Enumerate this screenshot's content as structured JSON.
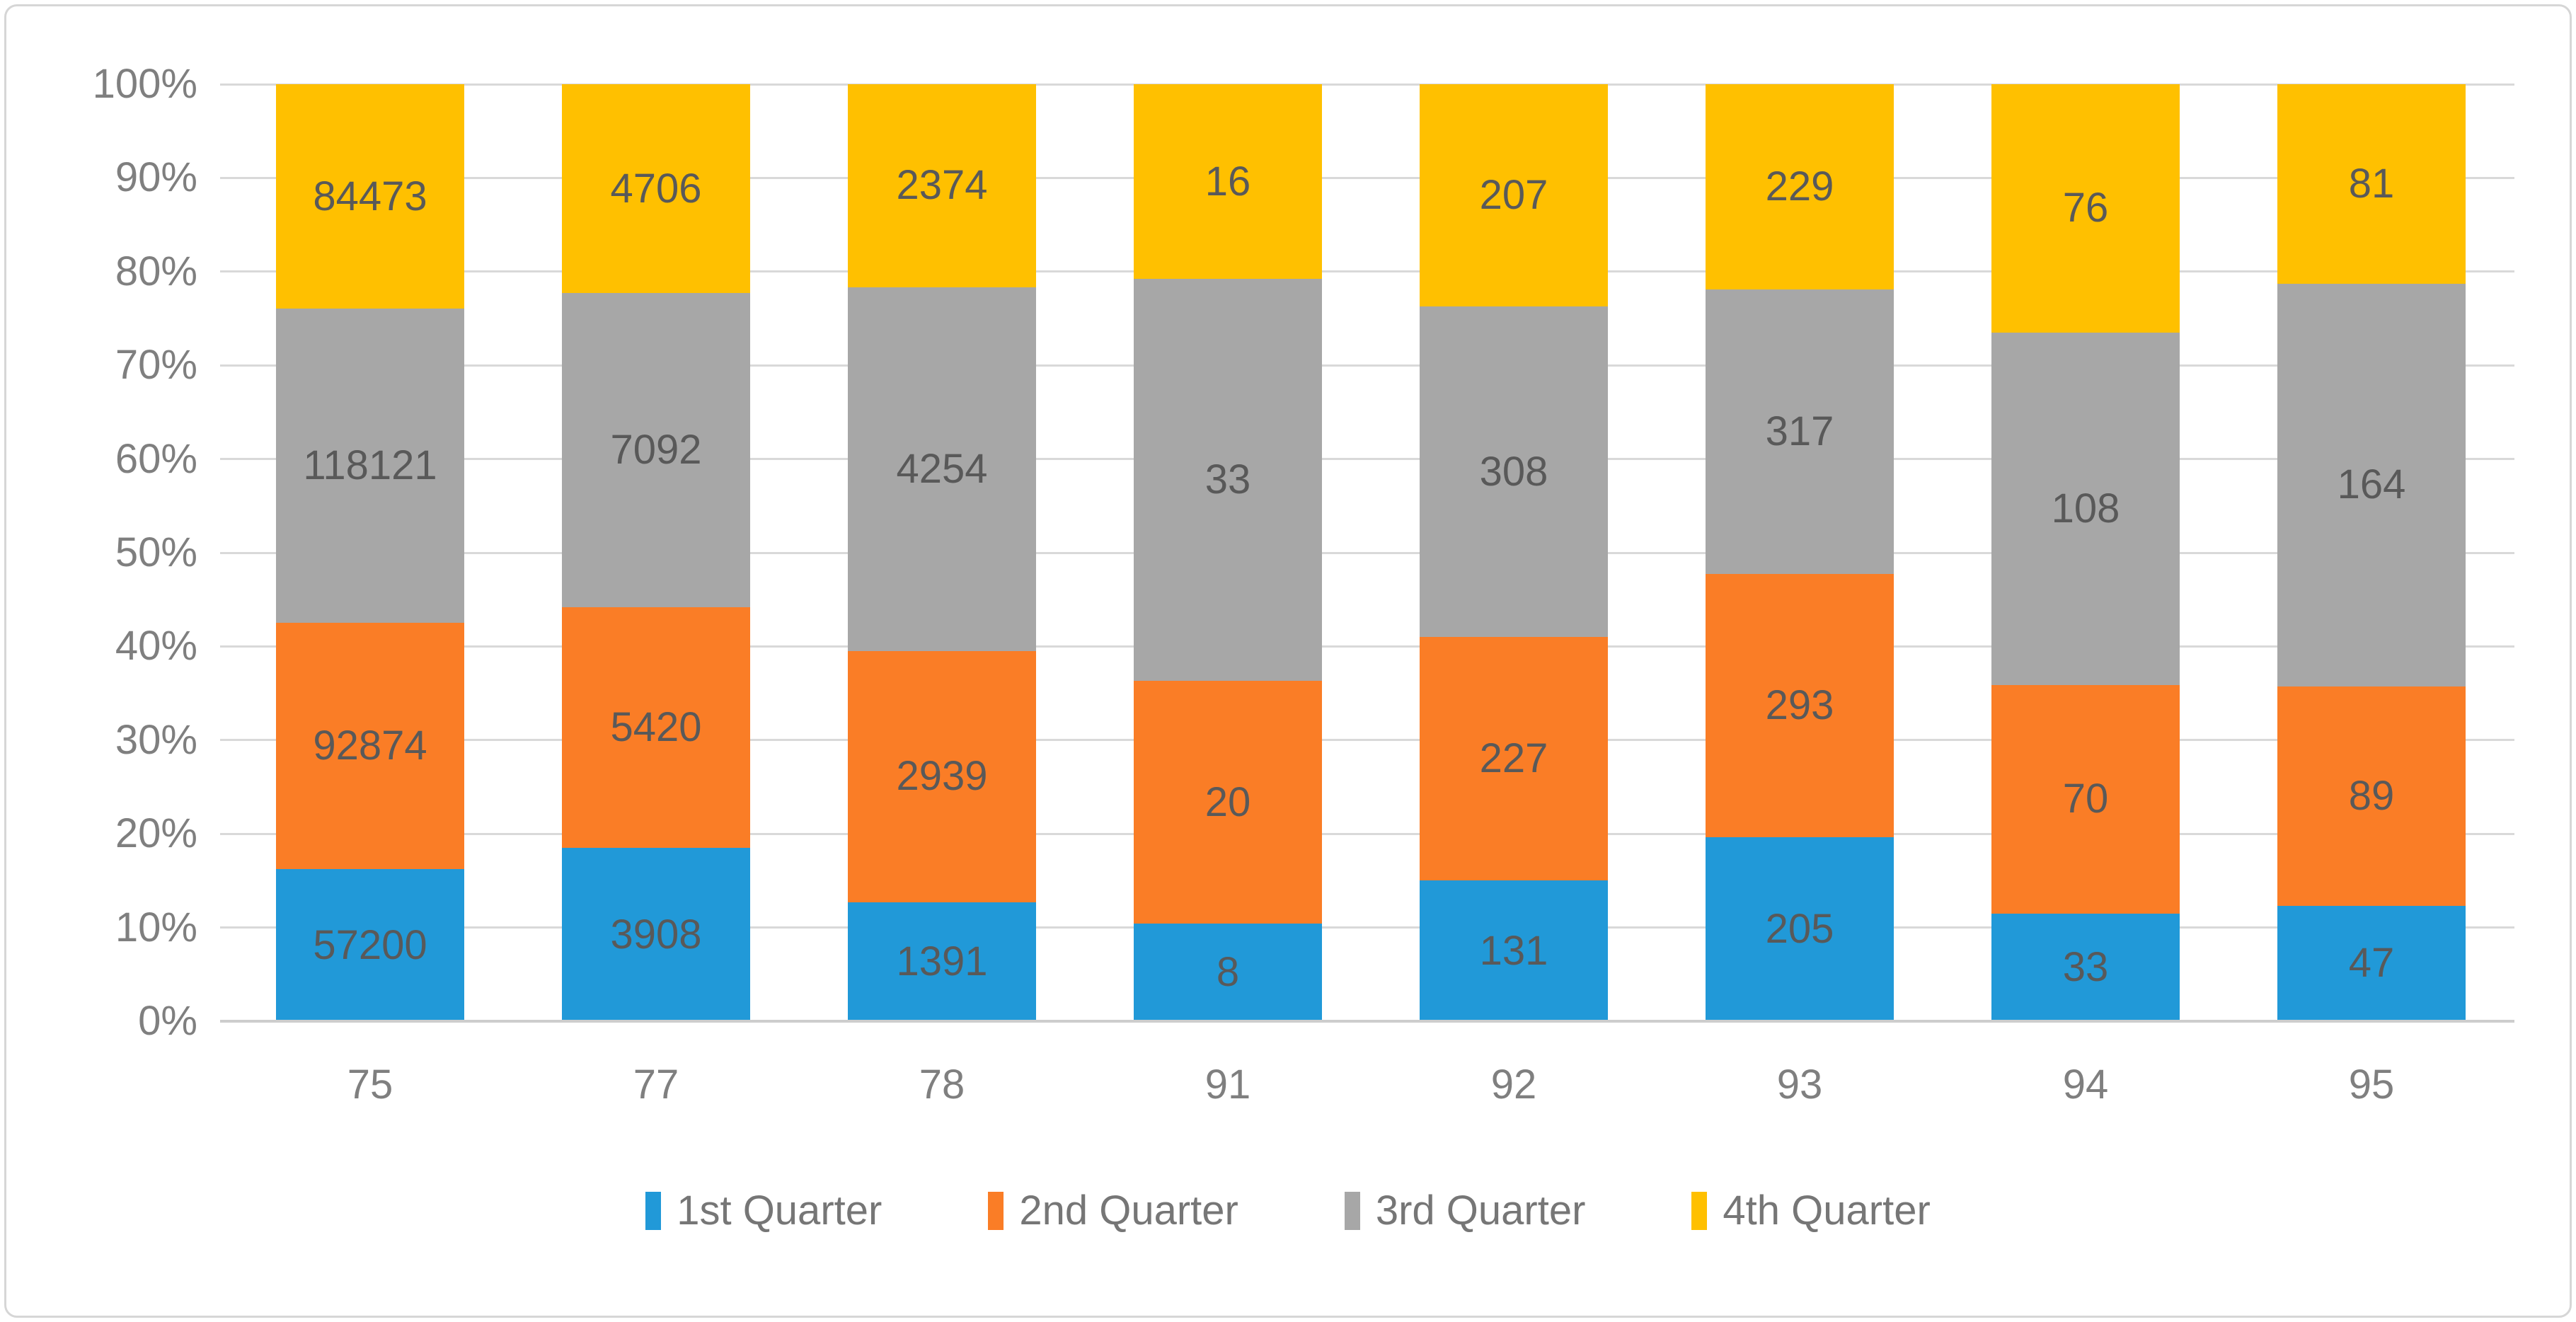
{
  "chart_data": {
    "type": "bar",
    "subtype": "stacked-100-percent-column",
    "title": "",
    "xlabel": "",
    "ylabel": "",
    "categories": [
      "75",
      "77",
      "78",
      "91",
      "92",
      "93",
      "94",
      "95"
    ],
    "series": [
      {
        "name": "1st Quarter",
        "color": "#2199d8",
        "values": [
          57200,
          3908,
          1391,
          8,
          131,
          205,
          33,
          47
        ]
      },
      {
        "name": "2nd Quarter",
        "color": "#fa7d26",
        "values": [
          92874,
          5420,
          2939,
          20,
          227,
          293,
          70,
          89
        ]
      },
      {
        "name": "3rd Quarter",
        "color": "#a7a7a7",
        "values": [
          118121,
          7092,
          4254,
          33,
          308,
          317,
          108,
          164
        ]
      },
      {
        "name": "4th Quarter",
        "color": "#ffc000",
        "values": [
          84473,
          4706,
          2374,
          16,
          207,
          229,
          76,
          81
        ]
      }
    ],
    "y_axis": {
      "min": 0,
      "max": 100,
      "tick_step": 10,
      "ticks": [
        "0%",
        "10%",
        "20%",
        "30%",
        "40%",
        "50%",
        "60%",
        "70%",
        "80%",
        "90%",
        "100%"
      ]
    },
    "grid": true,
    "legend_position": "bottom",
    "data_labels": "inside-center",
    "colors": {
      "gridline": "#d9d9d9",
      "axis_line": "#cdcdcd",
      "axis_text": "#7f7f7f",
      "data_label_text": "#595959",
      "legend_text": "#767676",
      "frame_border": "#d6d6d6",
      "background": "#ffffff"
    }
  }
}
